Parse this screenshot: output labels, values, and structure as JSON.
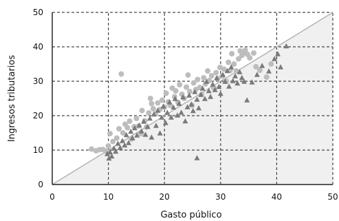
{
  "chart_data": {
    "type": "scatter",
    "xlabel": "Gasto público",
    "ylabel": "Ingresos tributarios",
    "xlim": [
      0,
      50
    ],
    "ylim": [
      0,
      50
    ],
    "x_ticks": [
      "0",
      "10",
      "20",
      "30",
      "40",
      "50"
    ],
    "y_ticks": [
      "0",
      "10",
      "20",
      "30",
      "40",
      "50"
    ],
    "grid": true,
    "diagonal_line": [
      [
        0,
        0
      ],
      [
        50,
        50
      ]
    ],
    "shaded_region": "below-diagonal",
    "colors": {
      "circles": "#bdbdbd",
      "triangles": "#7a7a7a",
      "diagonal": "#b3b3b3",
      "shade": "#f0f0f0",
      "grid": "#444444",
      "axis": "#222222"
    },
    "series": [
      {
        "marker": "circle",
        "points": [
          [
            7.0,
            10.3
          ],
          [
            7.8,
            9.8
          ],
          [
            8.4,
            10.1
          ],
          [
            9.0,
            10.2
          ],
          [
            9.6,
            9.7
          ],
          [
            10.0,
            11.2
          ],
          [
            10.3,
            14.8
          ],
          [
            10.8,
            12.5
          ],
          [
            11.5,
            13.5
          ],
          [
            11.9,
            16.2
          ],
          [
            12.3,
            32.1
          ],
          [
            12.6,
            15.0
          ],
          [
            13.0,
            17.5
          ],
          [
            13.4,
            16.5
          ],
          [
            13.8,
            18.4
          ],
          [
            14.1,
            13.2
          ],
          [
            14.6,
            16.8
          ],
          [
            15.0,
            19.2
          ],
          [
            15.4,
            17.0
          ],
          [
            15.8,
            14.8
          ],
          [
            16.0,
            21.5
          ],
          [
            16.5,
            18.5
          ],
          [
            16.8,
            16.7
          ],
          [
            17.2,
            20.8
          ],
          [
            17.5,
            25.0
          ],
          [
            17.7,
            23.5
          ],
          [
            18.0,
            22.0
          ],
          [
            18.4,
            20.5
          ],
          [
            18.8,
            23.7
          ],
          [
            19.2,
            21.8
          ],
          [
            19.6,
            24.5
          ],
          [
            20.0,
            22.5
          ],
          [
            20.3,
            26.5
          ],
          [
            20.7,
            24.0
          ],
          [
            21.0,
            23.0
          ],
          [
            21.4,
            28.0
          ],
          [
            21.8,
            25.5
          ],
          [
            22.0,
            27.2
          ],
          [
            22.4,
            23.9
          ],
          [
            22.7,
            29.0
          ],
          [
            23.1,
            26.2
          ],
          [
            23.5,
            25.0
          ],
          [
            23.9,
            28.3
          ],
          [
            24.2,
            31.8
          ],
          [
            24.5,
            27.0
          ],
          [
            24.9,
            23.0
          ],
          [
            25.2,
            29.5
          ],
          [
            25.6,
            27.6
          ],
          [
            25.9,
            30.5
          ],
          [
            26.3,
            28.2
          ],
          [
            26.6,
            26.2
          ],
          [
            27.0,
            31.0
          ],
          [
            27.3,
            29.2
          ],
          [
            27.7,
            33.0
          ],
          [
            28.0,
            30.2
          ],
          [
            28.4,
            31.6
          ],
          [
            28.8,
            28.0
          ],
          [
            29.2,
            32.5
          ],
          [
            29.5,
            30.8
          ],
          [
            29.9,
            34.0
          ],
          [
            30.3,
            31.5
          ],
          [
            30.6,
            33.5
          ],
          [
            31.0,
            30.0
          ],
          [
            31.4,
            35.5
          ],
          [
            31.7,
            33.1
          ],
          [
            32.0,
            38.0
          ],
          [
            32.4,
            35.0
          ],
          [
            32.8,
            33.0
          ],
          [
            33.2,
            36.5
          ],
          [
            33.5,
            38.8
          ],
          [
            33.8,
            37.5
          ],
          [
            34.1,
            38.2
          ],
          [
            34.4,
            39.0
          ],
          [
            34.8,
            37.8
          ],
          [
            35.2,
            36.8
          ],
          [
            35.9,
            38.2
          ],
          [
            36.3,
            34.2
          ],
          [
            37.0,
            33.2
          ],
          [
            38.2,
            31.2
          ],
          [
            39.0,
            35.0
          ]
        ]
      },
      {
        "marker": "triangle",
        "points": [
          [
            9.8,
            9.0
          ],
          [
            10.1,
            7.7
          ],
          [
            10.3,
            9.5
          ],
          [
            10.6,
            8.3
          ],
          [
            11.0,
            10.6
          ],
          [
            11.3,
            9.7
          ],
          [
            11.7,
            12.0
          ],
          [
            12.1,
            10.8
          ],
          [
            12.5,
            12.8
          ],
          [
            12.9,
            11.5
          ],
          [
            13.2,
            14.5
          ],
          [
            13.6,
            12.2
          ],
          [
            14.0,
            15.5
          ],
          [
            14.3,
            13.6
          ],
          [
            14.7,
            16.5
          ],
          [
            15.1,
            14.4
          ],
          [
            15.5,
            17.3
          ],
          [
            15.9,
            15.6
          ],
          [
            16.3,
            18.4
          ],
          [
            16.6,
            14.6
          ],
          [
            17.0,
            16.9
          ],
          [
            17.4,
            19.3
          ],
          [
            17.7,
            13.8
          ],
          [
            18.1,
            20.5
          ],
          [
            18.5,
            17.2
          ],
          [
            18.8,
            21.6
          ],
          [
            19.2,
            15.0
          ],
          [
            19.5,
            19.6
          ],
          [
            19.8,
            22.8
          ],
          [
            20.2,
            18.0
          ],
          [
            20.5,
            21.0
          ],
          [
            20.9,
            24.0
          ],
          [
            21.2,
            19.6
          ],
          [
            21.6,
            22.5
          ],
          [
            21.9,
            25.0
          ],
          [
            22.3,
            20.2
          ],
          [
            22.6,
            23.6
          ],
          [
            23.0,
            21.0
          ],
          [
            23.3,
            25.5
          ],
          [
            23.7,
            18.5
          ],
          [
            24.1,
            22.6
          ],
          [
            24.4,
            26.0
          ],
          [
            24.8,
            23.4
          ],
          [
            25.1,
            21.5
          ],
          [
            25.4,
            27.0
          ],
          [
            25.8,
            24.8
          ],
          [
            26.1,
            22.3
          ],
          [
            26.5,
            26.2
          ],
          [
            26.8,
            28.0
          ],
          [
            27.2,
            25.0
          ],
          [
            27.5,
            30.0
          ],
          [
            27.9,
            27.3
          ],
          [
            28.2,
            25.6
          ],
          [
            28.6,
            29.2
          ],
          [
            29.0,
            27.6
          ],
          [
            29.3,
            31.0
          ],
          [
            29.7,
            28.5
          ],
          [
            30.0,
            26.5
          ],
          [
            30.4,
            32.0
          ],
          [
            30.8,
            30.0
          ],
          [
            31.2,
            33.1
          ],
          [
            31.5,
            28.6
          ],
          [
            31.9,
            34.2
          ],
          [
            32.2,
            30.2
          ],
          [
            32.6,
            31.6
          ],
          [
            33.0,
            29.5
          ],
          [
            33.4,
            32.8
          ],
          [
            33.8,
            31.1
          ],
          [
            34.2,
            30.0
          ],
          [
            34.7,
            24.6
          ],
          [
            35.6,
            29.8
          ],
          [
            36.5,
            32.0
          ],
          [
            37.4,
            34.6
          ],
          [
            38.6,
            33.0
          ],
          [
            39.6,
            36.6
          ],
          [
            40.2,
            38.0
          ],
          [
            40.7,
            34.2
          ],
          [
            41.7,
            40.3
          ],
          [
            25.8,
            7.8
          ]
        ]
      }
    ]
  }
}
